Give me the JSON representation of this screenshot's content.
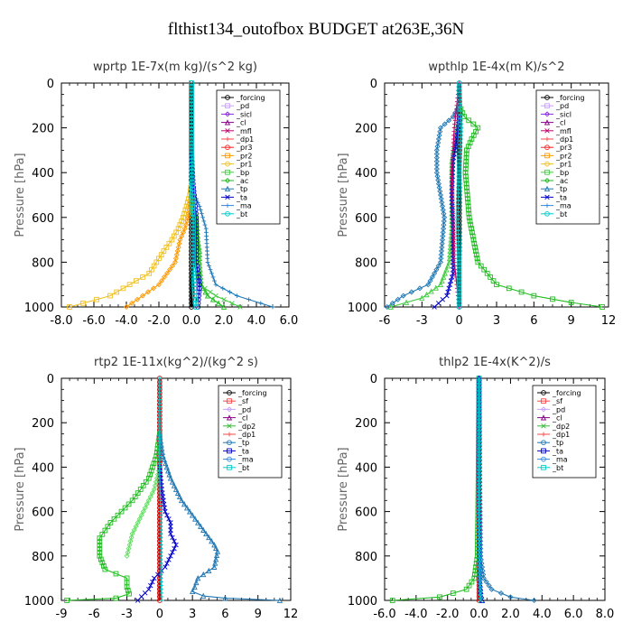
{
  "figure": {
    "title": "flthist134_outofbox  BUDGET at263E,36N"
  },
  "chart_data": [
    {
      "type": "line",
      "title": "wprtp  1E-7x(m kg)/(s^2 kg)",
      "ylabel": "Pressure [hPa]",
      "xlim": [
        -8,
        6
      ],
      "ylim": [
        1000,
        0
      ],
      "x_ticks": [
        "-8.0",
        "-6.0",
        "-4.0",
        "-2.0",
        "0.0",
        "2.0",
        "4.0",
        "6.0"
      ],
      "x_tick_values": [
        -8,
        -6,
        -4,
        -2,
        0,
        2,
        4,
        6
      ],
      "y_ticks": [
        "0",
        "200",
        "400",
        "600",
        "800",
        "1000"
      ],
      "y_tick_values": [
        0,
        200,
        400,
        600,
        800,
        1000
      ],
      "legend_position": "top-right",
      "legend": [
        "_forcing",
        "_pd",
        "_sicl",
        "_cl",
        "_mfl",
        "_dp1",
        "_pr3",
        "_pr2",
        "_pr1",
        "_bp",
        "_ac",
        "_tp",
        "_ta",
        "_ma",
        "_bt"
      ],
      "series": [
        {
          "name": "_forcing",
          "color": "#000000",
          "x": [
            0,
            0,
            0,
            0,
            0,
            0,
            0,
            0,
            0,
            0,
            0
          ],
          "y": [
            0,
            100,
            200,
            300,
            400,
            500,
            600,
            700,
            800,
            900,
            1000
          ]
        },
        {
          "name": "_pr1",
          "color": "#f0c020",
          "x": [
            0,
            -0.1,
            -0.3,
            -0.5,
            -0.8,
            -1.2,
            -1.7,
            -2.6,
            -5,
            -7.5
          ],
          "y": [
            450,
            500,
            550,
            600,
            650,
            700,
            750,
            850,
            950,
            1000
          ]
        },
        {
          "name": "_pr2",
          "color": "#ff9900",
          "x": [
            0,
            -0.1,
            -0.2,
            -0.4,
            -0.7,
            -1.0,
            -2,
            -4
          ],
          "y": [
            500,
            550,
            600,
            650,
            700,
            800,
            900,
            1000
          ]
        },
        {
          "name": "_ac",
          "color": "#22bb22",
          "x": [
            0,
            0.3,
            0.4,
            0.5,
            0.5,
            0.6,
            1.0,
            2.0
          ],
          "y": [
            500,
            600,
            700,
            750,
            800,
            900,
            950,
            1000
          ]
        },
        {
          "name": "_bp",
          "color": "#44cc44",
          "x": [
            0,
            0.2,
            0.3,
            0.3,
            0.5,
            1.5,
            3
          ],
          "y": [
            550,
            650,
            750,
            850,
            900,
            950,
            1000
          ]
        },
        {
          "name": "_tp",
          "color": "#1f77b4",
          "x": [
            0,
            0.2,
            0.5,
            0.9,
            1.0,
            1.5,
            2.8,
            5.0
          ],
          "y": [
            450,
            500,
            550,
            650,
            800,
            900,
            950,
            1000
          ]
        },
        {
          "name": "_ta",
          "color": "#0000cc",
          "x": [
            0,
            0.1,
            0.3,
            0.3,
            0.5,
            0.4
          ],
          "y": [
            300,
            450,
            600,
            800,
            900,
            1000
          ]
        },
        {
          "name": "_bt",
          "color": "#00cccc",
          "x": [
            0,
            0,
            0.1,
            0.1,
            0.2,
            0.3
          ],
          "y": [
            0,
            300,
            600,
            800,
            950,
            1000
          ]
        }
      ]
    },
    {
      "type": "line",
      "title": "wpthlp  1E-4x(m K)/s^2",
      "ylabel": "Pressure [hPa]",
      "xlim": [
        -6,
        12
      ],
      "ylim": [
        1000,
        0
      ],
      "x_ticks": [
        "-6",
        "-3",
        "0",
        "3",
        "6",
        "9",
        "12"
      ],
      "x_tick_values": [
        -6,
        -3,
        0,
        3,
        6,
        9,
        12
      ],
      "y_ticks": [
        "0",
        "200",
        "400",
        "600",
        "800",
        "1000"
      ],
      "y_tick_values": [
        0,
        200,
        400,
        600,
        800,
        1000
      ],
      "legend_position": "top-right",
      "legend": [
        "_forcing",
        "_pd",
        "_sicl",
        "_cl",
        "_mfl",
        "_dp1",
        "_pr3",
        "_pr2",
        "_pr1",
        "_bp",
        "_ac",
        "_tp",
        "_ta",
        "_ma",
        "_bt"
      ],
      "series": [
        {
          "name": "_forcing",
          "color": "#000000",
          "x": [
            0,
            0,
            0,
            0,
            0,
            0,
            0,
            0,
            0,
            0,
            0
          ],
          "y": [
            0,
            100,
            200,
            300,
            400,
            500,
            600,
            700,
            800,
            900,
            1000
          ]
        },
        {
          "name": "_bp",
          "color": "#22bb22",
          "x": [
            0,
            0.4,
            1.5,
            1.0,
            0.6,
            0.5,
            0.8,
            1.5,
            3,
            6,
            9,
            11.5
          ],
          "y": [
            100,
            150,
            200,
            250,
            300,
            400,
            600,
            800,
            900,
            950,
            980,
            1000
          ]
        },
        {
          "name": "_tp",
          "color": "#1f77b4",
          "x": [
            0,
            -0.5,
            -1.5,
            -1.8,
            -1.8,
            -1.5,
            -1.2,
            -1.5,
            -2.5,
            -4.5,
            -5.8
          ],
          "y": [
            100,
            150,
            200,
            300,
            400,
            500,
            600,
            800,
            900,
            950,
            1000
          ]
        },
        {
          "name": "_ac",
          "color": "#44cc44",
          "x": [
            0,
            -0.3,
            -0.6,
            -0.6,
            -0.6,
            -0.8,
            -1.5,
            -3,
            -5.5
          ],
          "y": [
            150,
            250,
            350,
            500,
            650,
            800,
            900,
            960,
            1000
          ]
        },
        {
          "name": "_ta",
          "color": "#0000cc",
          "x": [
            0,
            -0.2,
            -0.5,
            -0.6,
            -0.5,
            -0.5,
            -1,
            -2
          ],
          "y": [
            150,
            250,
            350,
            500,
            650,
            850,
            950,
            1000
          ]
        },
        {
          "name": "_mfl",
          "color": "#c0006a",
          "x": [
            0,
            -0.4,
            -0.6,
            -0.5,
            -0.4,
            0
          ],
          "y": [
            0,
            200,
            400,
            600,
            800,
            1000
          ]
        },
        {
          "name": "_bt",
          "color": "#00cccc",
          "x": [
            0,
            0.1,
            0,
            -0.1,
            0,
            0
          ],
          "y": [
            0,
            200,
            400,
            600,
            800,
            1000
          ]
        }
      ]
    },
    {
      "type": "line",
      "title": "rtp2  1E-11x(kg^2)/(kg^2 s)",
      "ylabel": "Pressure [hPa]",
      "xlim": [
        -9,
        12
      ],
      "ylim": [
        1000,
        0
      ],
      "x_ticks": [
        "-9",
        "-6",
        "-3",
        "0",
        "3",
        "6",
        "9",
        "12"
      ],
      "x_tick_values": [
        -9,
        -6,
        -3,
        0,
        3,
        6,
        9,
        12
      ],
      "y_ticks": [
        "0",
        "200",
        "400",
        "600",
        "800",
        "1000"
      ],
      "y_tick_values": [
        0,
        200,
        400,
        600,
        800,
        1000
      ],
      "legend_position": "top-right",
      "legend": [
        "_forcing",
        "_sf",
        "_pd",
        "_cl",
        "_dp2",
        "_dp1",
        "_tp",
        "_ta",
        "_ma",
        "_bt"
      ],
      "series": [
        {
          "name": "_forcing",
          "color": "#cc0000",
          "x": [
            0,
            0,
            0,
            0,
            0,
            0,
            0,
            0,
            0,
            0,
            0
          ],
          "y": [
            0,
            100,
            200,
            300,
            400,
            500,
            600,
            700,
            800,
            900,
            1000
          ]
        },
        {
          "name": "_dp2",
          "color": "#22bb22",
          "x": [
            0,
            -0.3,
            -1,
            -2.5,
            -4.5,
            -5.5,
            -5.5,
            -5.0,
            -3,
            -3,
            -2.8,
            -4,
            -8.5
          ],
          "y": [
            250,
            350,
            450,
            550,
            650,
            720,
            800,
            860,
            900,
            940,
            970,
            990,
            1000
          ]
        },
        {
          "name": "_dp1",
          "color": "#66dd66",
          "x": [
            0,
            -0.5,
            -1.5,
            -2.5,
            -3
          ],
          "y": [
            400,
            500,
            600,
            700,
            800
          ]
        },
        {
          "name": "_tp",
          "color": "#1f77b4",
          "x": [
            0,
            0.3,
            1,
            2,
            3.5,
            5,
            5.3,
            5.0,
            3.5,
            3.2,
            3,
            4,
            6,
            11
          ],
          "y": [
            250,
            350,
            450,
            550,
            650,
            750,
            780,
            850,
            900,
            940,
            960,
            980,
            990,
            1000
          ]
        },
        {
          "name": "_ta",
          "color": "#0000cc",
          "x": [
            0,
            0.2,
            0.5,
            1,
            1,
            1.5,
            1,
            0.5,
            -0.5,
            -1,
            -2
          ],
          "y": [
            400,
            500,
            600,
            650,
            700,
            750,
            800,
            850,
            900,
            950,
            1000
          ]
        },
        {
          "name": "_bt",
          "color": "#00cccc",
          "x": [
            0,
            0,
            0.1,
            0.1,
            0.2
          ],
          "y": [
            0,
            400,
            700,
            900,
            1000
          ]
        }
      ]
    },
    {
      "type": "line",
      "title": "thlp2  1E-4x(K^2)/s",
      "ylabel": "Pressure [hPa]",
      "xlim": [
        -6,
        8
      ],
      "ylim": [
        1000,
        0
      ],
      "x_ticks": [
        "-6.0",
        "-4.0",
        "-2.0",
        "0.0",
        "2.0",
        "4.0",
        "6.0",
        "8.0"
      ],
      "x_tick_values": [
        -6,
        -4,
        -2,
        0,
        2,
        4,
        6,
        8
      ],
      "y_ticks": [
        "0",
        "200",
        "400",
        "600",
        "800",
        "1000"
      ],
      "y_tick_values": [
        0,
        200,
        400,
        600,
        800,
        1000
      ],
      "legend_position": "top-right",
      "legend": [
        "_forcing",
        "_sf",
        "_pd",
        "_cl",
        "_dp2",
        "_dp1",
        "_tp",
        "_ta",
        "_ma",
        "_bt"
      ],
      "series": [
        {
          "name": "_forcing",
          "color": "#cc0000",
          "x": [
            0,
            0,
            0,
            0,
            0,
            0,
            0,
            0,
            0,
            0,
            0
          ],
          "y": [
            0,
            100,
            200,
            300,
            400,
            500,
            600,
            700,
            800,
            900,
            1000
          ]
        },
        {
          "name": "_dp2",
          "color": "#22bb22",
          "x": [
            0,
            -0.05,
            -0.1,
            -0.3,
            -0.8,
            -2.5,
            -5.5
          ],
          "y": [
            0,
            500,
            800,
            900,
            950,
            985,
            1000
          ]
        },
        {
          "name": "_tp",
          "color": "#1f77b4",
          "x": [
            0,
            0.05,
            0.1,
            0.3,
            0.8,
            2,
            3.5
          ],
          "y": [
            0,
            500,
            800,
            900,
            950,
            985,
            1000
          ]
        },
        {
          "name": "_ta",
          "color": "#0000cc",
          "x": [
            0,
            0,
            0.05,
            0.1,
            0.2
          ],
          "y": [
            0,
            600,
            900,
            960,
            1000
          ]
        },
        {
          "name": "_bt",
          "color": "#00cccc",
          "x": [
            0,
            0,
            0.05,
            0.1
          ],
          "y": [
            0,
            600,
            900,
            1000
          ]
        }
      ]
    }
  ]
}
